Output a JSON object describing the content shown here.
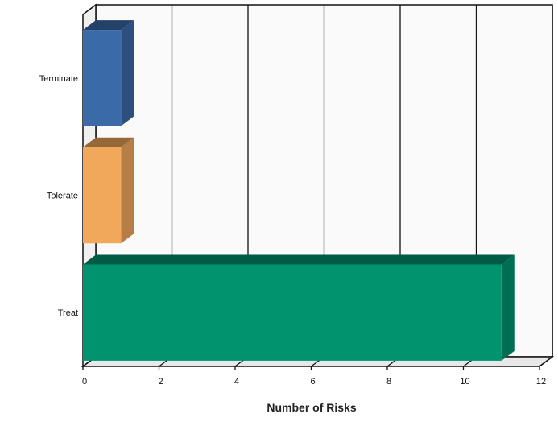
{
  "chart_data": {
    "type": "bar",
    "orientation": "horizontal",
    "style": "3d",
    "title": "",
    "xlabel": "Number of Risks",
    "ylabel": "",
    "categories": [
      "Terminate",
      "Tolerate",
      "Treat"
    ],
    "values": [
      1,
      1,
      11
    ],
    "colors": [
      "#3a6aa8",
      "#f2a85b",
      "#00936e"
    ],
    "xlim": [
      0,
      12
    ],
    "x_ticks": [
      0,
      2,
      4,
      6,
      8,
      10,
      12
    ],
    "grid": "vertical",
    "legend": "none"
  }
}
